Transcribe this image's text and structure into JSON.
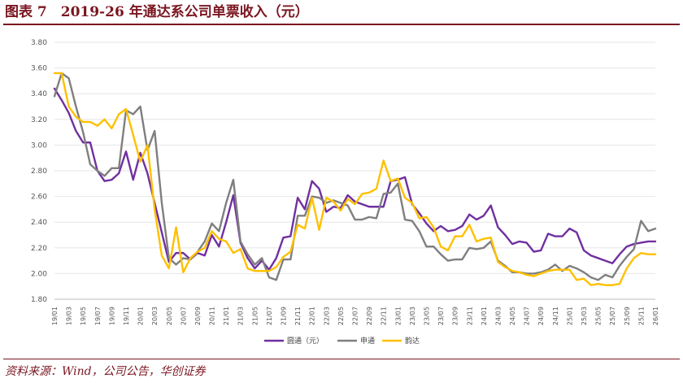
{
  "figure": {
    "title": "图表 7　2019-26 年通达系公司单票收入（元）",
    "source": "资料来源：Wind，公司公告，华创证券"
  },
  "chart_data": {
    "type": "line",
    "title": "",
    "xlabel": "",
    "ylabel": "",
    "ylim": [
      1.8,
      3.8
    ],
    "yticks": [
      "1.80",
      "2.00",
      "2.20",
      "2.40",
      "2.60",
      "2.80",
      "3.00",
      "3.20",
      "3.40",
      "3.60",
      "3.80"
    ],
    "grid": "horizontal",
    "legend_position": "bottom",
    "x": [
      "19/01",
      "19/02",
      "19/03",
      "19/04",
      "19/05",
      "19/06",
      "19/07",
      "19/08",
      "19/09",
      "19/10",
      "19/11",
      "19/12",
      "20/01",
      "20/02",
      "20/03",
      "20/04",
      "20/05",
      "20/06",
      "20/07",
      "20/08",
      "20/09",
      "20/10",
      "20/11",
      "20/12",
      "21/01",
      "21/02",
      "21/03",
      "21/04",
      "21/05",
      "21/06",
      "21/07",
      "21/08",
      "21/09",
      "21/10",
      "21/11",
      "21/12",
      "22/01",
      "22/02",
      "22/03",
      "22/04",
      "22/05",
      "22/06",
      "22/07",
      "22/08",
      "22/09",
      "22/10",
      "22/11",
      "22/12",
      "23/01",
      "23/02",
      "23/03",
      "23/04",
      "23/05",
      "23/06",
      "23/07",
      "23/08",
      "23/09",
      "23/10",
      "23/11",
      "23/12",
      "24/01",
      "24/02",
      "24/03",
      "24/04",
      "24/05",
      "24/06",
      "24/07",
      "24/08",
      "24/09",
      "24/10",
      "24/11",
      "24/12",
      "25/01",
      "25/02",
      "25/03",
      "25/04",
      "25/05",
      "25/06",
      "25/07",
      "25/08",
      "25/09",
      "25/10",
      "25/11",
      "25/12",
      "26/01"
    ],
    "xticks": [
      "19/01",
      "19/03",
      "19/05",
      "19/07",
      "19/09",
      "19/11",
      "20/01",
      "20/03",
      "20/05",
      "20/07",
      "20/09",
      "20/11",
      "21/01",
      "21/03",
      "21/05",
      "21/07",
      "21/09",
      "21/11",
      "22/01",
      "22/03",
      "22/05",
      "22/07",
      "22/09",
      "22/11",
      "23/01",
      "23/03",
      "23/05",
      "23/07",
      "23/09",
      "23/11",
      "24/01",
      "24/03",
      "24/05",
      "24/07",
      "24/09",
      "24/11",
      "25/01",
      "25/03",
      "25/05",
      "25/07",
      "25/09",
      "25/11",
      "26/01"
    ],
    "series": [
      {
        "name": "圆通（元）",
        "color": "#7030a0",
        "values": [
          3.44,
          3.35,
          3.25,
          3.11,
          3.02,
          3.02,
          2.8,
          2.72,
          2.73,
          2.78,
          2.95,
          2.73,
          2.94,
          2.78,
          2.55,
          2.32,
          2.09,
          2.16,
          2.16,
          2.11,
          2.16,
          2.14,
          2.3,
          2.21,
          2.4,
          2.61,
          2.24,
          2.12,
          2.04,
          2.1,
          2.03,
          2.12,
          2.28,
          2.29,
          2.59,
          2.5,
          2.72,
          2.66,
          2.48,
          2.52,
          2.51,
          2.61,
          2.56,
          2.54,
          2.52,
          2.52,
          2.52,
          2.72,
          2.73,
          2.75,
          2.54,
          2.47,
          2.39,
          2.33,
          2.37,
          2.33,
          2.34,
          2.37,
          2.46,
          2.42,
          2.45,
          2.53,
          2.36,
          2.3,
          2.23,
          2.25,
          2.24,
          2.17,
          2.18,
          2.31,
          2.29,
          2.29,
          2.35,
          2.32,
          2.18,
          2.14,
          2.12,
          2.1,
          2.08,
          2.15,
          2.21,
          2.23,
          2.24,
          2.25,
          2.25
        ]
      },
      {
        "name": "申通",
        "color": "#7f7f7f",
        "values": [
          3.38,
          3.56,
          3.52,
          3.3,
          3.1,
          2.85,
          2.8,
          2.76,
          2.82,
          2.82,
          3.27,
          3.24,
          3.3,
          2.96,
          3.11,
          2.55,
          2.12,
          2.07,
          2.12,
          2.11,
          2.17,
          2.25,
          2.39,
          2.33,
          2.55,
          2.73,
          2.25,
          2.15,
          2.07,
          2.12,
          1.97,
          1.95,
          2.11,
          2.11,
          2.45,
          2.45,
          2.6,
          2.59,
          2.55,
          2.57,
          2.55,
          2.53,
          2.42,
          2.42,
          2.44,
          2.43,
          2.62,
          2.63,
          2.7,
          2.42,
          2.41,
          2.33,
          2.21,
          2.21,
          2.15,
          2.1,
          2.11,
          2.11,
          2.2,
          2.19,
          2.2,
          2.25,
          2.1,
          2.06,
          2.01,
          2.01,
          2.0,
          2.0,
          2.01,
          2.03,
          2.07,
          2.02,
          2.06,
          2.04,
          2.01,
          1.97,
          1.95,
          1.99,
          1.97,
          2.06,
          2.13,
          2.19,
          2.41,
          2.33,
          2.35
        ]
      },
      {
        "name": "韵达",
        "color": "#ffc000",
        "values": [
          3.56,
          3.56,
          3.3,
          3.22,
          3.18,
          3.18,
          3.15,
          3.2,
          3.13,
          3.24,
          3.28,
          3.08,
          2.87,
          3.0,
          2.5,
          2.14,
          2.04,
          2.36,
          2.01,
          2.12,
          2.17,
          2.2,
          2.33,
          2.27,
          2.25,
          2.16,
          2.19,
          2.04,
          2.02,
          2.02,
          2.02,
          2.05,
          2.13,
          2.17,
          2.38,
          2.35,
          2.59,
          2.34,
          2.59,
          2.56,
          2.49,
          2.58,
          2.54,
          2.62,
          2.63,
          2.66,
          2.88,
          2.72,
          2.74,
          2.59,
          2.55,
          2.43,
          2.44,
          2.36,
          2.21,
          2.18,
          2.29,
          2.29,
          2.38,
          2.25,
          2.27,
          2.28,
          2.09,
          2.05,
          2.02,
          2.01,
          1.99,
          1.98,
          2.0,
          2.02,
          2.03,
          2.03,
          2.03,
          1.95,
          1.96,
          1.91,
          1.92,
          1.91,
          1.91,
          1.92,
          2.04,
          2.12,
          2.16,
          2.15,
          2.15
        ]
      }
    ]
  }
}
